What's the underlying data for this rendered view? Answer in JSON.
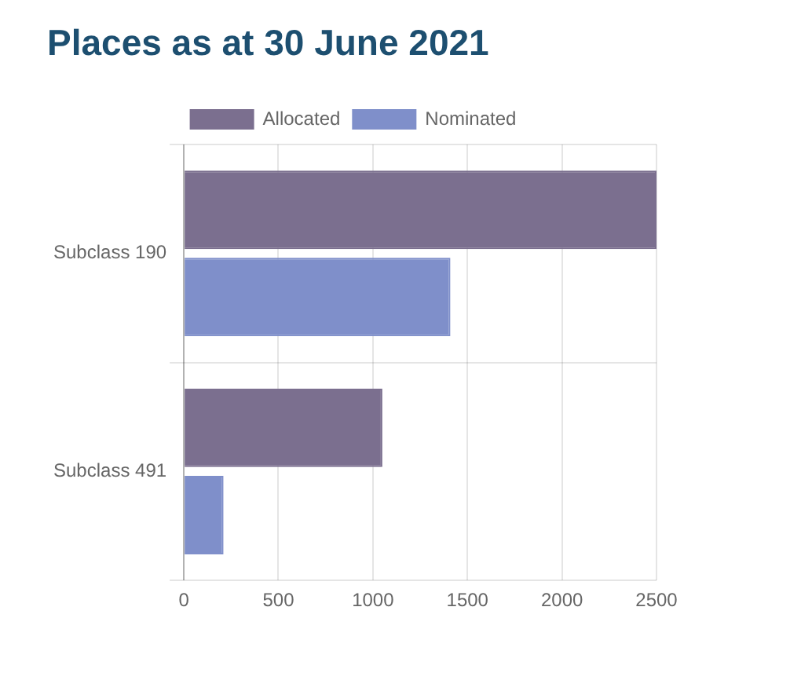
{
  "chart_data": {
    "type": "bar",
    "title": "Places as at 30 June 2021",
    "orientation": "horizontal",
    "categories": [
      "Subclass 190",
      "Subclass 491"
    ],
    "series": [
      {
        "name": "Allocated",
        "color": "#7b6f8f",
        "values": [
          2500,
          1050
        ]
      },
      {
        "name": "Nominated",
        "color": "#7f8fca",
        "values": [
          1410,
          210
        ]
      }
    ],
    "xlim": [
      0,
      2500
    ],
    "xticks": [
      0,
      500,
      1000,
      1500,
      2000,
      2500
    ],
    "grid": true,
    "legend": "top"
  }
}
